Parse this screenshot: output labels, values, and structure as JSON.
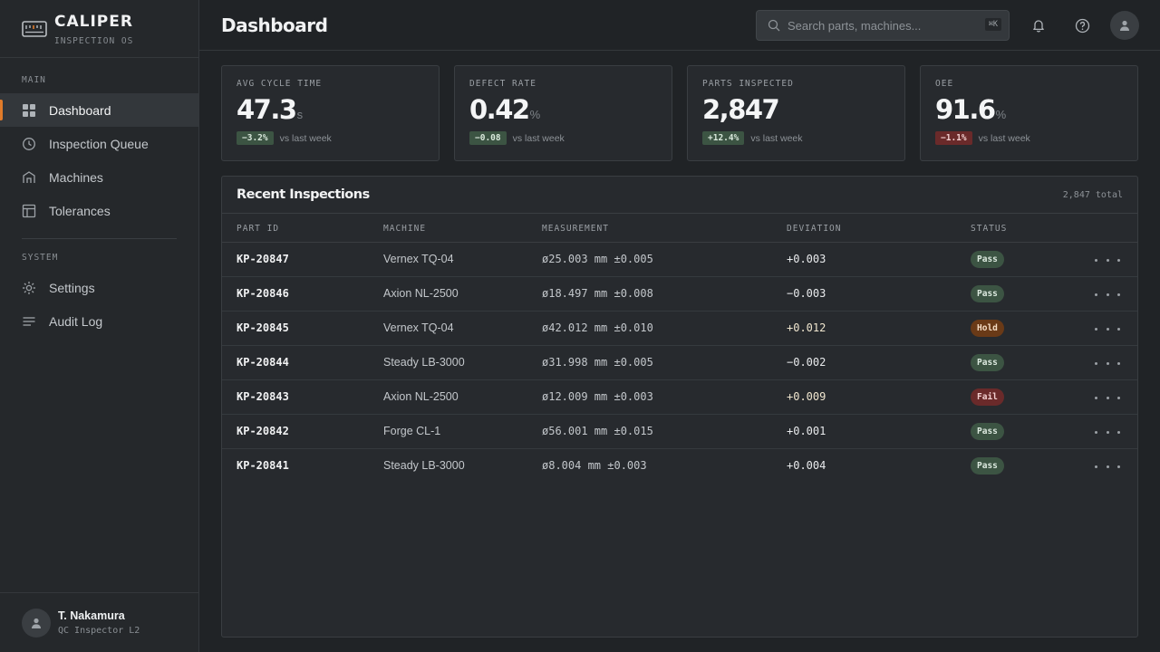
{
  "brand": {
    "name": "CALIPER",
    "subtitle": "INSPECTION OS"
  },
  "sidebar": {
    "sections": [
      {
        "title": "MAIN",
        "items": [
          {
            "label": "Dashboard",
            "icon": "grid-icon",
            "active": true
          },
          {
            "label": "Inspection Queue",
            "icon": "clock-icon"
          },
          {
            "label": "Machines",
            "icon": "machine-icon"
          },
          {
            "label": "Tolerances",
            "icon": "table-icon"
          }
        ]
      },
      {
        "title": "SYSTEM",
        "items": [
          {
            "label": "Settings",
            "icon": "gear-icon"
          },
          {
            "label": "Audit Log",
            "icon": "list-icon"
          }
        ]
      }
    ],
    "user": {
      "name": "T. Nakamura",
      "role": "QC Inspector L2"
    }
  },
  "header": {
    "title": "Dashboard",
    "search": {
      "placeholder": "Search parts, machines...",
      "value": "",
      "shortcut": "⌘K"
    }
  },
  "kpis": [
    {
      "label": "AVG CYCLE TIME",
      "value": "47.3",
      "unit": "s",
      "delta": "−3.2%",
      "trend": "good",
      "compare": "vs last week"
    },
    {
      "label": "DEFECT RATE",
      "value": "0.42",
      "unit": "%",
      "delta": "−0.08",
      "trend": "good",
      "compare": "vs last week"
    },
    {
      "label": "PARTS INSPECTED",
      "value": "2,847",
      "unit": "",
      "delta": "+12.4%",
      "trend": "good",
      "compare": "vs last week"
    },
    {
      "label": "OEE",
      "value": "91.6",
      "unit": "%",
      "delta": "−1.1%",
      "trend": "bad",
      "compare": "vs last week"
    }
  ],
  "inspections": {
    "title": "Recent Inspections",
    "count": "2,847 total",
    "columns": [
      "PART ID",
      "MACHINE",
      "MEASUREMENT",
      "DEVIATION",
      "STATUS"
    ],
    "rows": [
      {
        "part": "KP-20847",
        "machine": "Vernex TQ-04",
        "measurement": "ø25.003 mm ±0.005",
        "deviation": "+0.003",
        "status": "Pass"
      },
      {
        "part": "KP-20846",
        "machine": "Axion NL-2500",
        "measurement": "ø18.497 mm ±0.008",
        "deviation": "−0.003",
        "status": "Pass"
      },
      {
        "part": "KP-20845",
        "machine": "Vernex TQ-04",
        "measurement": "ø42.012 mm ±0.010",
        "deviation": "+0.012",
        "status": "Hold"
      },
      {
        "part": "KP-20844",
        "machine": "Steady LB-3000",
        "measurement": "ø31.998 mm ±0.005",
        "deviation": "−0.002",
        "status": "Pass"
      },
      {
        "part": "KP-20843",
        "machine": "Axion NL-2500",
        "measurement": "ø12.009 mm ±0.003",
        "deviation": "+0.009",
        "status": "Fail"
      },
      {
        "part": "KP-20842",
        "machine": "Forge CL-1",
        "measurement": "ø56.001 mm ±0.015",
        "deviation": "+0.001",
        "status": "Pass"
      },
      {
        "part": "KP-20841",
        "machine": "Steady LB-3000",
        "measurement": "ø8.004 mm ±0.003",
        "deviation": "+0.004",
        "status": "Pass"
      }
    ]
  },
  "colors": {
    "accent": "#e07b2a",
    "pass": "#3c5443",
    "hold": "#6a3a17",
    "fail": "#6a2a2a",
    "background": "#202326"
  }
}
